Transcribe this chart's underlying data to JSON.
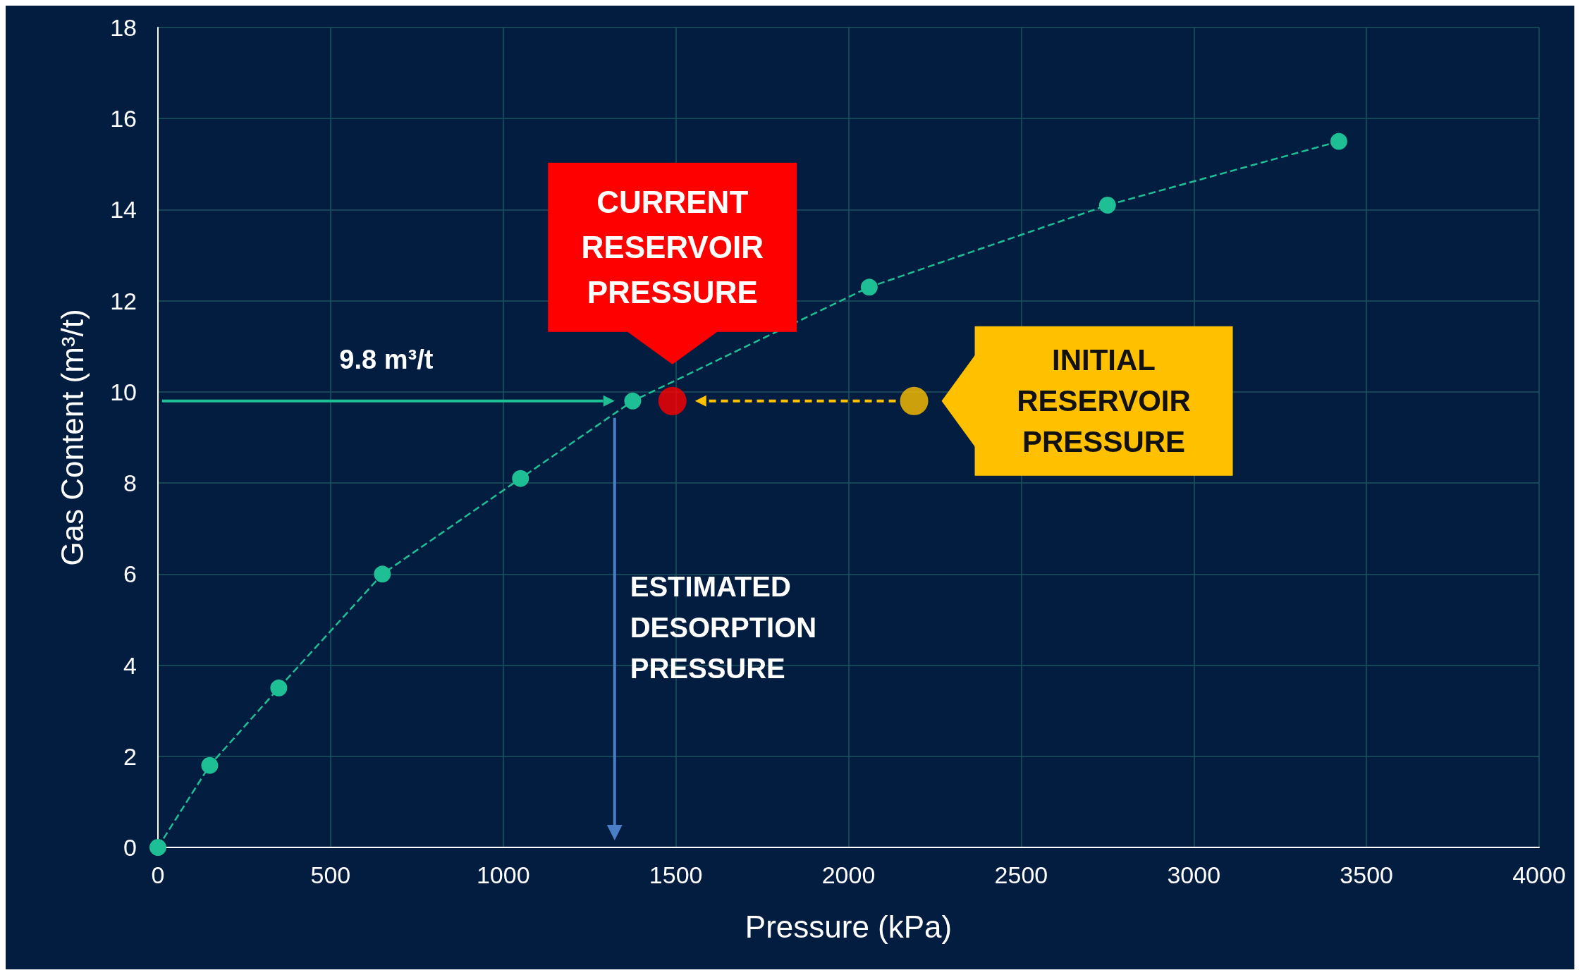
{
  "chart_data": {
    "type": "line",
    "xlabel": "Pressure (kPa)",
    "ylabel": "Gas Content (m³/t)",
    "xlim": [
      0,
      4000
    ],
    "xticks": [
      0,
      500,
      1000,
      1500,
      2000,
      2500,
      3000,
      3500,
      4000
    ],
    "ylim": [
      0,
      18
    ],
    "yticks": [
      0,
      2,
      4,
      6,
      8,
      10,
      12,
      14,
      16,
      18
    ],
    "grid": true,
    "marker": "circle",
    "line_style": "dashed",
    "series": [
      {
        "color": "#1fbf95",
        "x": [
          0,
          150,
          350,
          650,
          1050,
          1375,
          2060,
          2750,
          3420
        ],
        "values": [
          0,
          1.8,
          3.5,
          6.0,
          8.1,
          9.8,
          12.3,
          14.1,
          15.5
        ]
      },
      {
        "type": "scatter",
        "color": "#ff0000",
        "x": [
          1490
        ],
        "values": [
          9.8
        ]
      },
      {
        "type": "scatter",
        "color": "#ffc000",
        "x": [
          2190
        ],
        "values": [
          9.8
        ]
      }
    ],
    "annotations": [
      "9.8 m³/t",
      "CURRENT RESERVOIR PRESSURE",
      "INITIAL RESERVOIR PRESSURE",
      "ESTIMATED DESORPTION PRESSURE"
    ]
  }
}
